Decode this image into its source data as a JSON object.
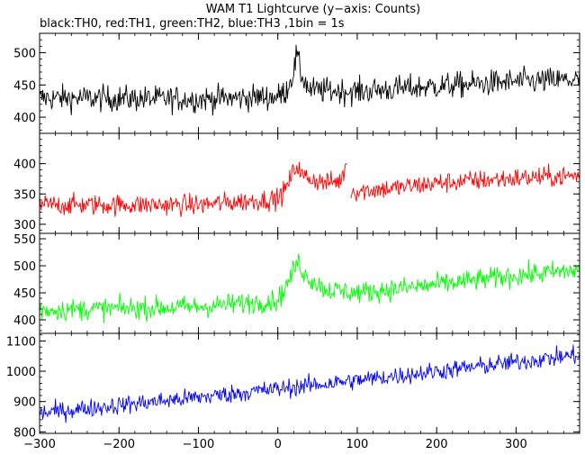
{
  "chart_data": {
    "type": "line",
    "title": "WAM T1 Lightcurve (y−axis: Counts)",
    "subtitle": "black:TH0, red:TH1, green:TH2, blue:TH3 ,1bin = 1s",
    "xlim": [
      -300,
      380
    ],
    "x_ticks": [
      -300,
      -200,
      -100,
      0,
      100,
      200,
      300
    ],
    "grid": false,
    "x": {
      "start": -300,
      "end": 380,
      "step": 1,
      "unit": "s"
    },
    "panels": [
      {
        "name": "TH0",
        "color": "#000000",
        "ylim": [
          375,
          530
        ],
        "y_ticks": [
          400,
          450,
          500
        ],
        "segments": [
          {
            "x": [
              -300,
              -100,
              0,
              10,
              20,
              24,
              28,
              40,
              100,
              200,
              300,
              380
            ],
            "y": [
              430,
              428,
              432,
              440,
              470,
              500,
              470,
              442,
              440,
              448,
              455,
              458
            ],
            "noise": 20
          }
        ]
      },
      {
        "name": "TH1",
        "color": "#ff0000",
        "ylim": [
          285,
          450
        ],
        "y_ticks": [
          300,
          350,
          400
        ],
        "segments": [
          {
            "x": [
              -300,
              -100,
              0,
              10,
              20,
              25,
              30,
              60,
              80,
              87
            ],
            "y": [
              332,
              332,
              342,
              358,
              388,
              398,
              380,
              368,
              372,
              405
            ],
            "noise": 17
          },
          {
            "x": [
              92,
              150,
              200,
              300,
              380
            ],
            "y": [
              354,
              360,
              368,
              376,
              380
            ],
            "noise": 17
          }
        ]
      },
      {
        "name": "TH2",
        "color": "#00ff00",
        "ylim": [
          375,
          560
        ],
        "y_ticks": [
          400,
          450,
          500,
          550
        ],
        "segments": [
          {
            "x": [
              -300,
              -100,
              0,
              10,
              20,
              25,
              35,
              60,
              100,
              200,
              300,
              380
            ],
            "y": [
              418,
              424,
              436,
              460,
              492,
              508,
              482,
              456,
              450,
              465,
              482,
              492
            ],
            "noise": 20
          }
        ]
      },
      {
        "name": "TH3",
        "color": "#0000ff",
        "ylim": [
          795,
          1125
        ],
        "y_ticks": [
          800,
          900,
          1000,
          1100
        ],
        "segments": [
          {
            "x": [
              -300,
              -200,
              -100,
              0,
              100,
              200,
              300,
              380
            ],
            "y": [
              862,
              888,
              914,
              942,
              970,
              1000,
              1030,
              1055
            ],
            "noise": 30
          }
        ]
      }
    ]
  }
}
